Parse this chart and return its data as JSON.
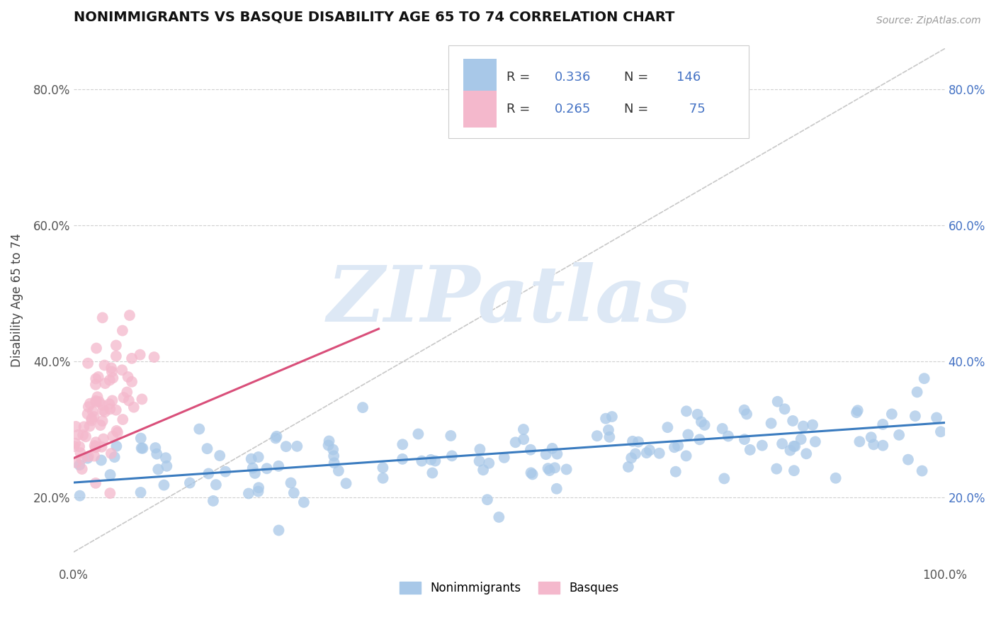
{
  "title": "NONIMMIGRANTS VS BASQUE DISABILITY AGE 65 TO 74 CORRELATION CHART",
  "source": "Source: ZipAtlas.com",
  "ylabel": "Disability Age 65 to 74",
  "xlim": [
    0.0,
    1.0
  ],
  "ylim": [
    0.1,
    0.88
  ],
  "x_ticks": [
    0.0,
    0.1,
    0.2,
    0.3,
    0.4,
    0.5,
    0.6,
    0.7,
    0.8,
    0.9,
    1.0
  ],
  "y_ticks": [
    0.2,
    0.4,
    0.6,
    0.8
  ],
  "y_tick_labels": [
    "20.0%",
    "40.0%",
    "60.0%",
    "80.0%"
  ],
  "blue_color": "#a8c8e8",
  "pink_color": "#f4b8cc",
  "blue_line_color": "#3a7bbf",
  "pink_line_color": "#d94f7a",
  "ref_line_color": "#c8c8c8",
  "legend_label1": "Nonimmigrants",
  "legend_label2": "Basques",
  "watermark": "ZIPatlas",
  "watermark_color": "#dde8f5",
  "background_color": "#ffffff",
  "blue_R": 0.336,
  "blue_N": 146,
  "pink_R": 0.265,
  "pink_N": 75,
  "seed": 99
}
